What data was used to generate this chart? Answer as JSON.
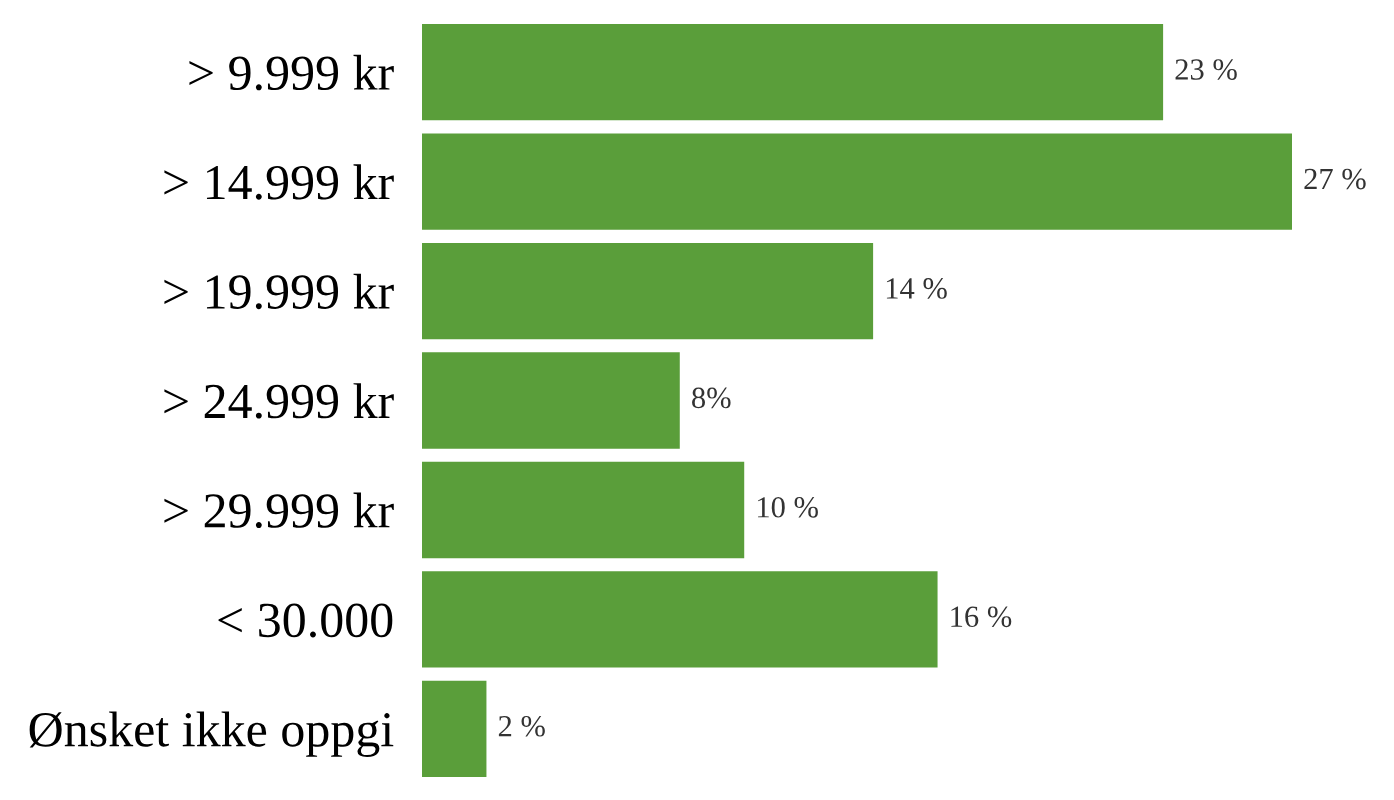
{
  "chart_data": {
    "type": "bar",
    "orientation": "horizontal",
    "categories": [
      "> 9.999 kr",
      "> 14.999 kr",
      "> 19.999 kr",
      "> 24.999 kr",
      "> 29.999 kr",
      "< 30.000",
      "Ønsket ikke oppgi"
    ],
    "values": [
      23,
      27,
      14,
      8,
      10,
      16,
      2
    ],
    "value_labels": [
      "23 %",
      "27 %",
      "14 %",
      "8%",
      "10 %",
      "16 %",
      "2 %"
    ],
    "color": "#5a9e3a",
    "grid": false,
    "legend": false
  }
}
